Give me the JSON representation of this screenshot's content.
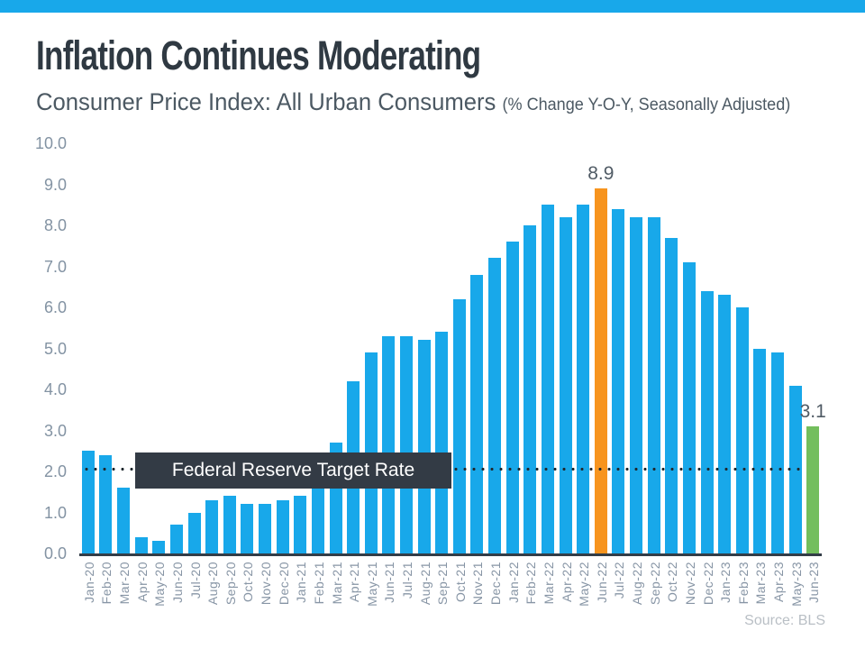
{
  "header": {
    "title": "Inflation Continues Moderating",
    "subtitle": "Consumer Price Index: All Urban Consumers ",
    "subtitle_note": "(% Change Y-O-Y, Seasonally Adjusted)"
  },
  "footer": {
    "source": "Source: BLS"
  },
  "annotation": {
    "target_rate_label": "Federal Reserve Target Rate",
    "target_rate_value": 2.0
  },
  "colors": {
    "accent_band": "#18A8EA",
    "bar_blue": "#18A8EA",
    "bar_orange": "#F7941E",
    "bar_green": "#73BE5D",
    "title_text": "#2F3942",
    "subtitle_text": "#4C5963",
    "tick_text": "#8393A3",
    "value_label_text": "#505B65",
    "target_box_bg": "#333B45",
    "target_box_text": "#FFFFFF",
    "dotted_line": "#20292F",
    "axis_line": "#333D47",
    "source_text": "#B9BFC5"
  },
  "chart_data": {
    "type": "bar",
    "title": "Consumer Price Index: All Urban Consumers (% Change Y-O-Y, Seasonally Adjusted)",
    "xlabel": "",
    "ylabel": "",
    "ylim": [
      0,
      10
    ],
    "grid": false,
    "legend": "none",
    "bar_color": "#18A8EA",
    "categories": [
      "Jan-20",
      "Feb-20",
      "Mar-20",
      "Apr-20",
      "May-20",
      "Jun-20",
      "Jul-20",
      "Aug-20",
      "Sep-20",
      "Oct-20",
      "Nov-20",
      "Dec-20",
      "Jan-21",
      "Feb-21",
      "Mar-21",
      "Apr-21",
      "May-21",
      "Jun-21",
      "Jul-21",
      "Aug-21",
      "Sep-21",
      "Oct-21",
      "Nov-21",
      "Dec-21",
      "Jan-22",
      "Feb-22",
      "Mar-22",
      "Apr-22",
      "May-22",
      "Jun-22",
      "Jul-22",
      "Aug-22",
      "Sep-22",
      "Oct-22",
      "Nov-22",
      "Dec-22",
      "Jan-23",
      "Feb-23",
      "Mar-23",
      "Apr-23",
      "May-23",
      "Jun-23"
    ],
    "values": [
      2.5,
      2.4,
      1.6,
      0.4,
      0.3,
      0.7,
      1.0,
      1.3,
      1.4,
      1.2,
      1.2,
      1.3,
      1.4,
      1.7,
      2.7,
      4.2,
      4.9,
      5.3,
      5.3,
      5.2,
      5.4,
      6.2,
      6.8,
      7.2,
      7.6,
      8.0,
      8.5,
      8.2,
      8.5,
      8.9,
      8.4,
      8.2,
      8.2,
      7.7,
      7.1,
      6.4,
      6.3,
      6.0,
      5.0,
      4.9,
      4.1,
      3.1
    ],
    "highlight_bars": [
      {
        "month": "Jun-22",
        "color": "#F7941E"
      },
      {
        "month": "Jun-23",
        "color": "#73BE5D"
      }
    ],
    "data_labels": [
      {
        "month": "Jun-22",
        "text": "8.9"
      },
      {
        "month": "Jun-23",
        "text": "3.1"
      }
    ],
    "reference_line": {
      "value": 2.0,
      "style": "dotted",
      "label": "Federal Reserve Target Rate"
    },
    "yticks": [
      {
        "value": 10,
        "label": "10.0"
      },
      {
        "value": 9,
        "label": "9.0"
      },
      {
        "value": 8,
        "label": "8.0"
      },
      {
        "value": 7,
        "label": "7.0"
      },
      {
        "value": 6,
        "label": "6.0"
      },
      {
        "value": 5,
        "label": "5.0"
      },
      {
        "value": 4,
        "label": "4.0"
      },
      {
        "value": 3,
        "label": "3.0"
      },
      {
        "value": 2,
        "label": "2.0"
      },
      {
        "value": 1,
        "label": "1.0"
      },
      {
        "value": 0,
        "label": "0.0"
      }
    ]
  }
}
